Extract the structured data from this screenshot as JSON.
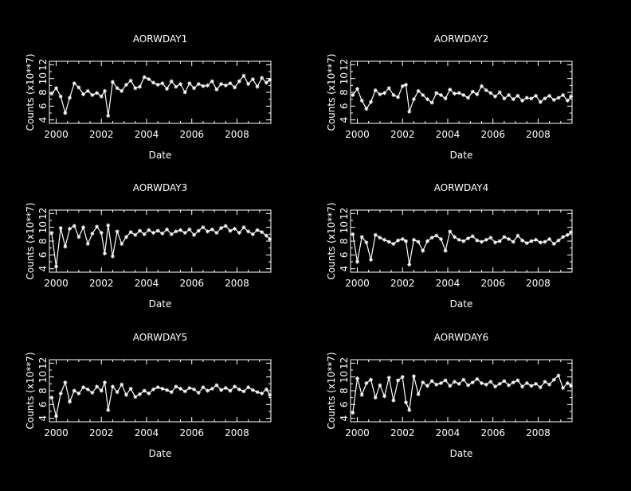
{
  "figure": {
    "background": "#000000",
    "foreground": "#ffffff",
    "grid": false,
    "legend": false
  },
  "chart_data": [
    {
      "type": "line",
      "title": "AORWDAY1",
      "xlabel": "Date",
      "ylabel": "Counts (x10**7)",
      "xlim": [
        1999.7,
        2009.5
      ],
      "ylim": [
        3.5,
        12.5
      ],
      "xticks": [
        "2000",
        "2002",
        "2004",
        "2006",
        "2008"
      ],
      "yticks": [
        "4",
        "6",
        "8",
        "10",
        "12"
      ],
      "marker": "star",
      "series": [
        {
          "x": [
            1999.8,
            2000.0,
            2000.2,
            2000.4,
            2000.6,
            2000.8,
            2001.0,
            2001.2,
            2001.4,
            2001.6,
            2001.8,
            2002.0,
            2002.15,
            2002.3,
            2002.5,
            2002.7,
            2002.9,
            2003.1,
            2003.3,
            2003.5,
            2003.7,
            2003.9,
            2004.1,
            2004.3,
            2004.5,
            2004.7,
            2004.9,
            2005.1,
            2005.3,
            2005.5,
            2005.7,
            2005.9,
            2006.1,
            2006.3,
            2006.5,
            2006.7,
            2006.9,
            2007.1,
            2007.3,
            2007.5,
            2007.7,
            2007.9,
            2008.1,
            2008.3,
            2008.5,
            2008.7,
            2008.9,
            2009.1,
            2009.3,
            2009.45
          ],
          "y": [
            7.8,
            8.6,
            7.4,
            5.0,
            7.2,
            9.3,
            8.7,
            7.7,
            8.2,
            7.6,
            7.9,
            7.4,
            8.2,
            4.6,
            9.5,
            8.6,
            8.2,
            9.1,
            9.7,
            8.6,
            8.8,
            10.2,
            9.9,
            9.4,
            9.1,
            9.3,
            8.5,
            9.6,
            8.8,
            9.2,
            8.0,
            9.3,
            8.6,
            9.2,
            8.9,
            9.0,
            9.6,
            8.4,
            9.2,
            9.0,
            9.3,
            8.7,
            9.6,
            10.4,
            9.2,
            9.9,
            8.8,
            10.1,
            9.4,
            9.8
          ]
        }
      ]
    },
    {
      "type": "line",
      "title": "AORWDAY2",
      "xlabel": "Date",
      "ylabel": "Counts (x10**7)",
      "xlim": [
        1999.7,
        2009.5
      ],
      "ylim": [
        3.5,
        12.5
      ],
      "xticks": [
        "2000",
        "2002",
        "2004",
        "2006",
        "2008"
      ],
      "yticks": [
        "4",
        "6",
        "8",
        "10",
        "12"
      ],
      "marker": "star",
      "series": [
        {
          "x": [
            1999.8,
            2000.0,
            2000.2,
            2000.4,
            2000.6,
            2000.8,
            2001.0,
            2001.2,
            2001.4,
            2001.6,
            2001.8,
            2002.0,
            2002.15,
            2002.3,
            2002.5,
            2002.7,
            2002.9,
            2003.1,
            2003.3,
            2003.5,
            2003.7,
            2003.9,
            2004.1,
            2004.3,
            2004.5,
            2004.7,
            2004.9,
            2005.1,
            2005.3,
            2005.5,
            2005.7,
            2005.9,
            2006.1,
            2006.3,
            2006.5,
            2006.7,
            2006.9,
            2007.1,
            2007.3,
            2007.5,
            2007.7,
            2007.9,
            2008.1,
            2008.3,
            2008.5,
            2008.7,
            2008.9,
            2009.1,
            2009.3,
            2009.45
          ],
          "y": [
            7.6,
            8.5,
            6.8,
            5.6,
            6.6,
            8.3,
            7.7,
            7.9,
            8.6,
            7.6,
            7.3,
            8.9,
            9.1,
            5.2,
            7.0,
            8.2,
            7.6,
            7.0,
            6.5,
            7.9,
            7.6,
            7.1,
            8.4,
            7.8,
            7.9,
            7.6,
            7.2,
            8.1,
            7.7,
            8.9,
            8.3,
            7.9,
            7.4,
            8.0,
            7.1,
            7.6,
            7.0,
            7.5,
            6.8,
            7.2,
            7.1,
            7.5,
            6.6,
            7.1,
            7.5,
            6.9,
            7.2,
            7.6,
            6.8,
            7.4
          ]
        }
      ]
    },
    {
      "type": "line",
      "title": "AORWDAY3",
      "xlabel": "Date",
      "ylabel": "Counts (x10**7)",
      "xlim": [
        1999.7,
        2009.5
      ],
      "ylim": [
        3.5,
        12.5
      ],
      "xticks": [
        "2000",
        "2002",
        "2004",
        "2006",
        "2008"
      ],
      "yticks": [
        "4",
        "6",
        "8",
        "10",
        "12"
      ],
      "marker": "star",
      "series": [
        {
          "x": [
            1999.8,
            2000.0,
            2000.2,
            2000.4,
            2000.6,
            2000.8,
            2001.0,
            2001.2,
            2001.4,
            2001.6,
            2001.8,
            2002.0,
            2002.15,
            2002.3,
            2002.5,
            2002.7,
            2002.9,
            2003.1,
            2003.3,
            2003.5,
            2003.7,
            2003.9,
            2004.1,
            2004.3,
            2004.5,
            2004.7,
            2004.9,
            2005.1,
            2005.3,
            2005.5,
            2005.7,
            2005.9,
            2006.1,
            2006.3,
            2006.5,
            2006.7,
            2006.9,
            2007.1,
            2007.3,
            2007.5,
            2007.7,
            2007.9,
            2008.1,
            2008.3,
            2008.5,
            2008.7,
            2008.9,
            2009.1,
            2009.3,
            2009.45
          ],
          "y": [
            9.2,
            4.3,
            9.9,
            7.2,
            9.8,
            10.2,
            8.6,
            10.0,
            7.6,
            9.1,
            10.1,
            9.2,
            6.2,
            10.3,
            5.8,
            9.4,
            7.6,
            8.6,
            9.3,
            8.9,
            9.5,
            9.0,
            9.6,
            9.2,
            9.5,
            9.1,
            9.7,
            9.0,
            9.4,
            9.6,
            9.2,
            9.7,
            8.9,
            9.5,
            10.0,
            9.4,
            9.7,
            9.2,
            9.9,
            10.2,
            9.5,
            9.8,
            9.2,
            10.0,
            9.4,
            9.0,
            9.6,
            9.3,
            8.8,
            8.3
          ]
        }
      ]
    },
    {
      "type": "line",
      "title": "AORWDAY4",
      "xlabel": "Date",
      "ylabel": "Counts (x10**7)",
      "xlim": [
        1999.7,
        2009.5
      ],
      "ylim": [
        3.5,
        12.5
      ],
      "xticks": [
        "2000",
        "2002",
        "2004",
        "2006",
        "2008"
      ],
      "yticks": [
        "4",
        "6",
        "8",
        "10",
        "12"
      ],
      "marker": "star",
      "series": [
        {
          "x": [
            1999.8,
            2000.0,
            2000.2,
            2000.4,
            2000.6,
            2000.8,
            2001.0,
            2001.2,
            2001.4,
            2001.6,
            2001.8,
            2002.0,
            2002.15,
            2002.3,
            2002.5,
            2002.7,
            2002.9,
            2003.1,
            2003.3,
            2003.5,
            2003.7,
            2003.9,
            2004.1,
            2004.3,
            2004.5,
            2004.7,
            2004.9,
            2005.1,
            2005.3,
            2005.5,
            2005.7,
            2005.9,
            2006.1,
            2006.3,
            2006.5,
            2006.7,
            2006.9,
            2007.1,
            2007.3,
            2007.5,
            2007.7,
            2007.9,
            2008.1,
            2008.3,
            2008.5,
            2008.7,
            2008.9,
            2009.1,
            2009.3,
            2009.45
          ],
          "y": [
            9.0,
            5.0,
            8.6,
            7.8,
            5.3,
            8.9,
            8.5,
            8.2,
            7.9,
            7.6,
            8.1,
            8.3,
            8.0,
            4.6,
            8.2,
            7.9,
            6.6,
            8.0,
            8.5,
            8.8,
            8.3,
            6.6,
            9.4,
            8.6,
            8.2,
            8.0,
            8.4,
            8.7,
            8.1,
            7.9,
            8.2,
            8.5,
            7.8,
            8.0,
            8.6,
            8.3,
            7.9,
            8.8,
            8.1,
            7.7,
            8.0,
            8.2,
            7.8,
            7.9,
            8.3,
            7.6,
            8.1,
            8.6,
            8.9,
            9.3
          ]
        }
      ]
    },
    {
      "type": "line",
      "title": "AORWDAY5",
      "xlabel": "Date",
      "ylabel": "Counts (x10**7)",
      "xlim": [
        1999.7,
        2009.5
      ],
      "ylim": [
        3.5,
        12.5
      ],
      "xticks": [
        "2000",
        "2002",
        "2004",
        "2006",
        "2008"
      ],
      "yticks": [
        "4",
        "6",
        "8",
        "10",
        "12"
      ],
      "marker": "star",
      "series": [
        {
          "x": [
            1999.8,
            2000.0,
            2000.2,
            2000.4,
            2000.6,
            2000.8,
            2001.0,
            2001.2,
            2001.4,
            2001.6,
            2001.8,
            2002.0,
            2002.15,
            2002.3,
            2002.5,
            2002.7,
            2002.9,
            2003.1,
            2003.3,
            2003.5,
            2003.7,
            2003.9,
            2004.1,
            2004.3,
            2004.5,
            2004.7,
            2004.9,
            2005.1,
            2005.3,
            2005.5,
            2005.7,
            2005.9,
            2006.1,
            2006.3,
            2006.5,
            2006.7,
            2006.9,
            2007.1,
            2007.3,
            2007.5,
            2007.7,
            2007.9,
            2008.1,
            2008.3,
            2008.5,
            2008.7,
            2008.9,
            2009.1,
            2009.3,
            2009.45
          ],
          "y": [
            7.0,
            4.3,
            7.6,
            9.2,
            6.4,
            8.0,
            7.6,
            8.5,
            8.2,
            7.7,
            8.6,
            8.0,
            9.2,
            5.2,
            8.6,
            7.8,
            8.9,
            7.4,
            8.3,
            7.1,
            7.5,
            8.0,
            7.6,
            8.2,
            8.5,
            8.3,
            8.1,
            7.8,
            8.6,
            8.3,
            7.9,
            8.4,
            8.2,
            7.7,
            8.5,
            8.0,
            8.3,
            8.8,
            8.1,
            8.4,
            8.0,
            8.6,
            8.2,
            7.9,
            8.5,
            8.1,
            7.8,
            7.6,
            8.2,
            7.4
          ]
        }
      ]
    },
    {
      "type": "line",
      "title": "AORWDAY6",
      "xlabel": "Date",
      "ylabel": "Counts (x10**7)",
      "xlim": [
        1999.7,
        2009.5
      ],
      "ylim": [
        3.5,
        12.5
      ],
      "xticks": [
        "2000",
        "2002",
        "2004",
        "2006",
        "2008"
      ],
      "yticks": [
        "4",
        "6",
        "8",
        "10",
        "12"
      ],
      "marker": "star",
      "series": [
        {
          "x": [
            1999.8,
            2000.0,
            2000.2,
            2000.4,
            2000.6,
            2000.8,
            2001.0,
            2001.2,
            2001.4,
            2001.6,
            2001.8,
            2002.0,
            2002.15,
            2002.3,
            2002.5,
            2002.7,
            2002.9,
            2003.1,
            2003.3,
            2003.5,
            2003.7,
            2003.9,
            2004.1,
            2004.3,
            2004.5,
            2004.7,
            2004.9,
            2005.1,
            2005.3,
            2005.5,
            2005.7,
            2005.9,
            2006.1,
            2006.3,
            2006.5,
            2006.7,
            2006.9,
            2007.1,
            2007.3,
            2007.5,
            2007.7,
            2007.9,
            2008.1,
            2008.3,
            2008.5,
            2008.7,
            2008.9,
            2009.1,
            2009.3,
            2009.45
          ],
          "y": [
            4.8,
            9.8,
            7.4,
            9.1,
            9.6,
            7.0,
            8.8,
            7.2,
            9.9,
            6.6,
            9.5,
            10.0,
            6.3,
            5.2,
            10.1,
            7.5,
            9.2,
            8.7,
            9.4,
            8.9,
            9.1,
            9.5,
            8.7,
            9.3,
            9.0,
            9.6,
            8.8,
            9.2,
            9.7,
            9.1,
            8.9,
            9.3,
            8.6,
            9.0,
            9.4,
            8.8,
            9.2,
            9.5,
            8.6,
            9.1,
            8.7,
            9.0,
            8.5,
            9.3,
            8.9,
            9.6,
            10.2,
            8.4,
            9.1,
            8.7
          ]
        }
      ]
    }
  ]
}
